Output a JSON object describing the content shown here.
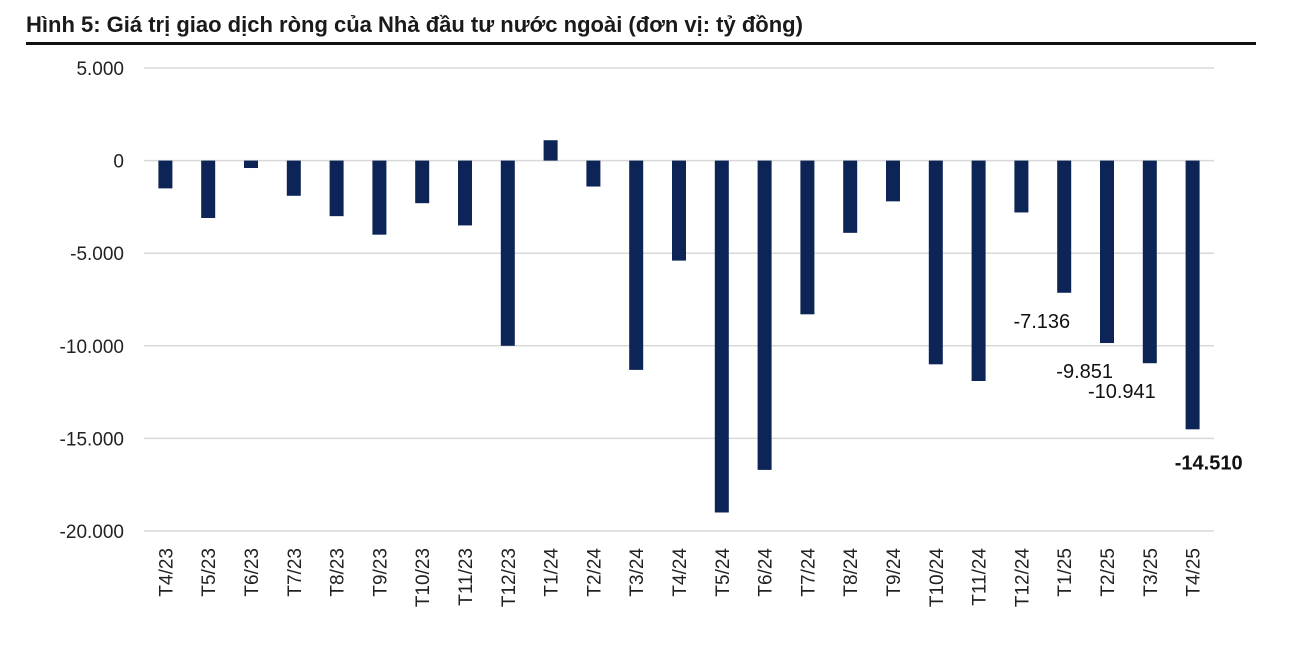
{
  "title": "Hình 5: Giá trị giao dịch ròng của Nhà đầu tư nước ngoài (đơn vị: tỷ đồng)",
  "chart_data": {
    "type": "bar",
    "categories": [
      "T4/23",
      "T5/23",
      "T6/23",
      "T7/23",
      "T8/23",
      "T9/23",
      "T10/23",
      "T11/23",
      "T12/23",
      "T1/24",
      "T2/24",
      "T3/24",
      "T4/24",
      "T5/24",
      "T6/24",
      "T7/24",
      "T8/24",
      "T9/24",
      "T10/24",
      "T11/24",
      "T12/24",
      "T1/25",
      "T2/25",
      "T3/25",
      "T4/25"
    ],
    "values": [
      -1500,
      -3100,
      -400,
      -1900,
      -3000,
      -4000,
      -2300,
      -3500,
      -10000,
      1100,
      -1400,
      -11300,
      -5400,
      -19000,
      -16700,
      -8300,
      -3900,
      -2200,
      -11000,
      -11900,
      -2800,
      -7136,
      -9851,
      -10941,
      -14510
    ],
    "ylim": [
      -20000,
      5000
    ],
    "yticks": [
      5000,
      0,
      -5000,
      -10000,
      -15000,
      -20000
    ],
    "ytick_labels": [
      "5.000",
      "0",
      "-5.000",
      "-10.000",
      "-15.000",
      "-20.000"
    ],
    "data_labels": [
      {
        "index": 21,
        "text": "-7.136",
        "bold": false
      },
      {
        "index": 22,
        "text": "-9.851",
        "bold": false
      },
      {
        "index": 23,
        "text": "-10.941",
        "bold": false
      },
      {
        "index": 24,
        "text": "-14.510",
        "bold": true
      }
    ],
    "grid": true,
    "bar_color": "#0d2456",
    "grid_color": "#d9d9d9",
    "xlabel": "",
    "ylabel": ""
  }
}
